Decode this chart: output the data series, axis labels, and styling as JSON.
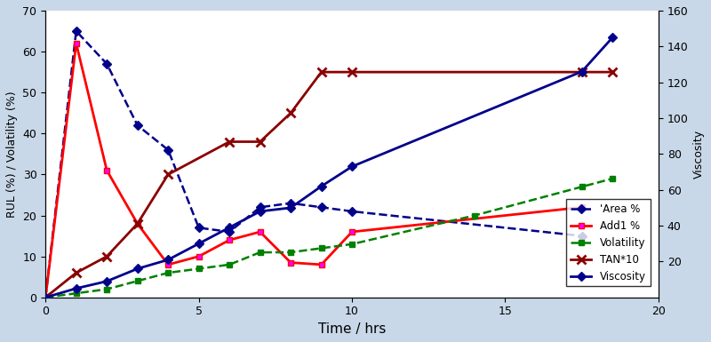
{
  "title": "",
  "xlabel": "Time / hrs",
  "ylabel_left": "RUL (%) / Volatility (%)",
  "ylabel_right": "Viscosity",
  "xlim": [
    0,
    20
  ],
  "ylim_left": [
    0,
    70
  ],
  "ylim_right": [
    0,
    160
  ],
  "yticks_left": [
    0,
    10,
    20,
    30,
    40,
    50,
    60,
    70
  ],
  "yticks_right": [
    20,
    40,
    60,
    80,
    100,
    120,
    140,
    160
  ],
  "xticks": [
    0,
    5,
    10,
    15,
    20
  ],
  "area_pct": {
    "x": [
      0,
      1,
      2,
      3,
      4,
      5,
      6,
      7,
      8,
      9,
      10,
      17.5
    ],
    "y": [
      0,
      65,
      57,
      42,
      36,
      17,
      16,
      22,
      23,
      22,
      21,
      15
    ],
    "color": "#00008B",
    "linestyle": "dashed",
    "marker": "D",
    "markersize": 5,
    "linewidth": 1.8,
    "label": "'Area %"
  },
  "add1_pct": {
    "x": [
      0,
      1,
      2,
      3,
      4,
      5,
      6,
      7,
      8,
      9,
      10,
      17.5
    ],
    "y": [
      0,
      62,
      31,
      18,
      8,
      10,
      14,
      16,
      8.5,
      8,
      16,
      22
    ],
    "color": "#FF0000",
    "marker_color": "#FF00FF",
    "linestyle": "solid",
    "marker": "s",
    "markersize": 5,
    "linewidth": 2.0,
    "label": "Add1 %"
  },
  "volatility": {
    "x": [
      0,
      1,
      2,
      3,
      4,
      5,
      6,
      7,
      8,
      9,
      10,
      14,
      17.5,
      18.5
    ],
    "y": [
      0,
      1,
      2,
      4,
      6,
      7,
      8,
      11,
      11,
      12,
      13,
      20,
      27,
      29
    ],
    "color": "#008000",
    "linestyle": "dashed",
    "marker": "s",
    "markersize": 4,
    "linewidth": 1.8,
    "label": "Volatility"
  },
  "tan10": {
    "x": [
      0,
      1,
      2,
      3,
      4,
      6,
      7,
      8,
      9,
      10,
      17.5,
      18.5
    ],
    "y": [
      0,
      6,
      10,
      18,
      30,
      38,
      38,
      45,
      55,
      55,
      55,
      55
    ],
    "color": "#8B0000",
    "linestyle": "solid",
    "marker": "x",
    "markersize": 7,
    "linewidth": 2.0,
    "label": "TAN*10"
  },
  "viscosity": {
    "x": [
      0,
      1,
      2,
      3,
      4,
      5,
      6,
      7,
      8,
      9,
      10,
      17.5,
      18.5
    ],
    "y": [
      0,
      5,
      9,
      16,
      21,
      30,
      39,
      48,
      50,
      62,
      73,
      126,
      145
    ],
    "color": "#00008B",
    "linestyle": "solid",
    "marker": "D",
    "markersize": 5,
    "linewidth": 2.0,
    "label": "Viscosity"
  },
  "background_color": "#FFFFFF",
  "figure_bg": "#C8D8E8"
}
